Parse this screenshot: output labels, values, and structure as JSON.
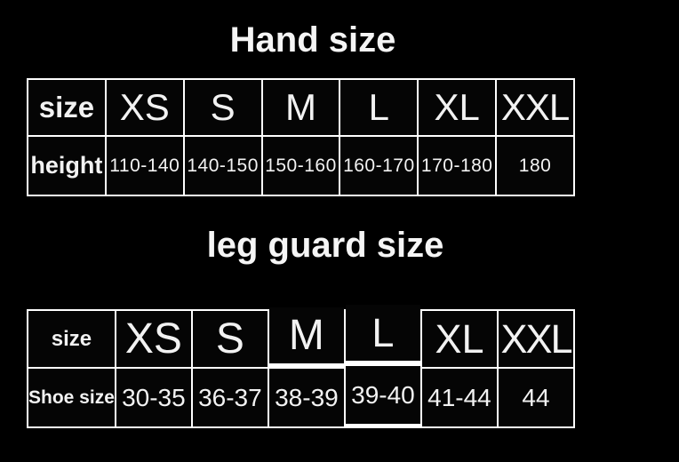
{
  "titles": {
    "hand": "Hand size",
    "leg": "leg guard size"
  },
  "hand_table": {
    "header": [
      "size",
      "XS",
      "S",
      "M",
      "L",
      "XL",
      "XXL"
    ],
    "row_label": "height",
    "row_values": [
      "110-140",
      "140-150",
      "150-160",
      "160-170",
      "170-180",
      "180"
    ]
  },
  "leg_table": {
    "header": [
      "size",
      "XS",
      "S",
      "M",
      "L",
      "XL",
      "XXL"
    ],
    "row_label": "Shoe size",
    "row_values": [
      "30-35",
      "36-37",
      "38-39",
      "39-40",
      "41-44",
      "44"
    ]
  },
  "colors": {
    "background": "#000000",
    "border": "#ffffff",
    "text": "#f2f2f2"
  }
}
